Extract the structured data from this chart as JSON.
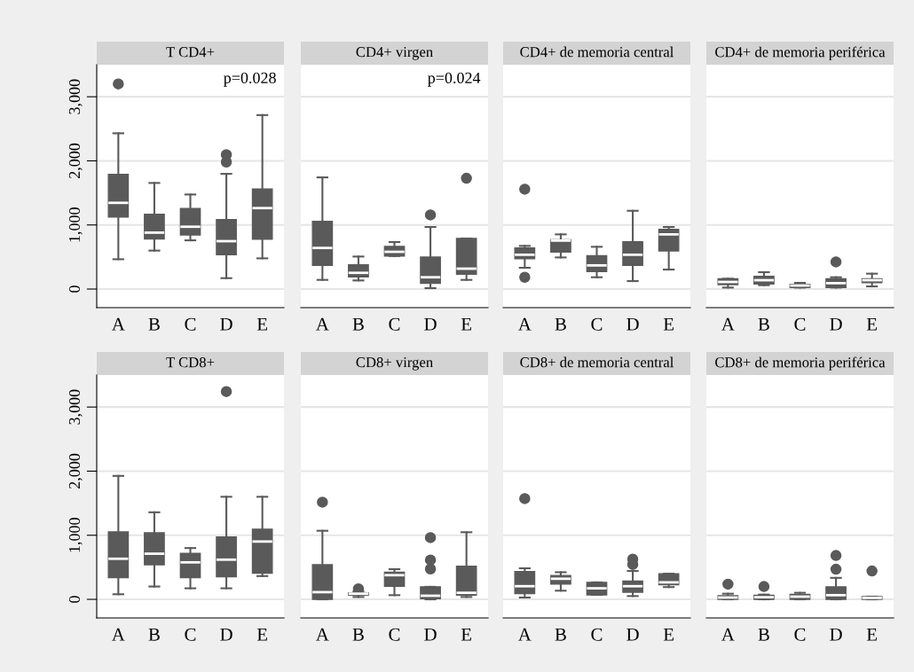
{
  "chart_data": [
    {
      "type": "box",
      "title": "T CD4+",
      "categories": [
        "A",
        "B",
        "C",
        "D",
        "E"
      ],
      "ylim": [
        -290,
        3500
      ],
      "yticks": [
        0,
        {
          "value": 1000,
          "label": "1,000"
        },
        {
          "value": 2000,
          "label": "2,000"
        },
        {
          "value": 3000,
          "label": "3,000"
        }
      ],
      "grid": "y",
      "annotations": [
        "p=0.028"
      ],
      "boxes": [
        {
          "low": 465,
          "q1": 1125,
          "median": 1345,
          "q3": 1790,
          "high": 2430,
          "outliers": [
            3200
          ]
        },
        {
          "low": 600,
          "q1": 780,
          "median": 880,
          "q3": 1165,
          "high": 1655
        },
        {
          "low": 760,
          "q1": 843,
          "median": 972,
          "q3": 1258,
          "high": 1475
        },
        {
          "low": 170,
          "q1": 535,
          "median": 747,
          "q3": 1083,
          "high": 1797,
          "outliers": [
            1982,
            2097
          ]
        },
        {
          "low": 479,
          "q1": 779,
          "median": 1263,
          "q3": 1562,
          "high": 2714
        }
      ]
    },
    {
      "type": "box",
      "title": "CD4+ virgen",
      "categories": [
        "A",
        "B",
        "C",
        "D",
        "E"
      ],
      "ylim": [
        -290,
        3500
      ],
      "yticks": [
        {
          "value": 0,
          "label": null
        },
        {
          "value": 1000,
          "label": null
        },
        {
          "value": 2000,
          "label": null
        },
        {
          "value": 3000,
          "label": null
        }
      ],
      "grid": "y",
      "tick_labels": "x",
      "annotations": [
        "p=0.024"
      ],
      "boxes": [
        {
          "low": 143,
          "q1": 369,
          "median": 641,
          "q3": 1055,
          "high": 1742
        },
        {
          "low": 134,
          "q1": 189,
          "median": 253,
          "q3": 378,
          "high": 507
        },
        {
          "low": 516,
          "q1": 516,
          "median": 581,
          "q3": 664,
          "high": 733
        },
        {
          "low": 14,
          "q1": 88,
          "median": 184,
          "q3": 498,
          "high": 968,
          "outliers": [
            1157
          ]
        },
        {
          "low": 143,
          "q1": 230,
          "median": 318,
          "q3": 788,
          "high": 788,
          "outliers": [
            1728
          ]
        }
      ]
    },
    {
      "type": "box",
      "title": "CD4+ de memoria central",
      "categories": [
        "A",
        "B",
        "C",
        "D",
        "E"
      ],
      "ylim": [
        -290,
        3500
      ],
      "yticks": [
        {
          "value": 0,
          "label": null
        },
        {
          "value": 1000,
          "label": null
        },
        {
          "value": 2000,
          "label": null
        },
        {
          "value": 3000,
          "label": null
        }
      ],
      "grid": "y",
      "tick_labels": "x",
      "boxes": [
        {
          "low": 332,
          "q1": 475,
          "median": 535,
          "q3": 641,
          "high": 673,
          "outliers": [
            184,
            1558
          ]
        },
        {
          "low": 493,
          "q1": 576,
          "median": 756,
          "q3": 770,
          "high": 853
        },
        {
          "low": 184,
          "q1": 272,
          "median": 369,
          "q3": 521,
          "high": 659
        },
        {
          "low": 124,
          "q1": 369,
          "median": 535,
          "q3": 737,
          "high": 1221
        },
        {
          "low": 304,
          "q1": 594,
          "median": 853,
          "q3": 931,
          "high": 968
        }
      ]
    },
    {
      "type": "box",
      "title": "CD4+ de memoria periférica",
      "categories": [
        "A",
        "B",
        "C",
        "D",
        "E"
      ],
      "ylim": [
        -290,
        3500
      ],
      "yticks": [
        {
          "value": 0,
          "label": null
        },
        {
          "value": 1000,
          "label": null
        },
        {
          "value": 2000,
          "label": null
        },
        {
          "value": 3000,
          "label": null
        }
      ],
      "grid": "y",
      "tick_labels": "x",
      "boxes": [
        {
          "low": 23,
          "q1": 69,
          "median": 111,
          "q3": 161,
          "high": 161
        },
        {
          "low": 60,
          "q1": 78,
          "median": 138,
          "q3": 198,
          "high": 263
        },
        {
          "low": 23,
          "q1": 23,
          "median": 55,
          "q3": 74,
          "high": 97
        },
        {
          "low": 23,
          "q1": 23,
          "median": 92,
          "q3": 161,
          "high": 184,
          "outliers": [
            424
          ]
        },
        {
          "low": 41,
          "q1": 101,
          "median": 138,
          "q3": 161,
          "high": 240
        }
      ]
    },
    {
      "type": "box",
      "title": "T CD8+",
      "categories": [
        "A",
        "B",
        "C",
        "D",
        "E"
      ],
      "ylim": [
        -290,
        3500
      ],
      "yticks": [
        0,
        {
          "value": 1000,
          "label": "1,000"
        },
        {
          "value": 2000,
          "label": "2,000"
        },
        {
          "value": 3000,
          "label": "3,000"
        }
      ],
      "grid": "y",
      "boxes": [
        {
          "low": 79,
          "q1": 340,
          "median": 633,
          "q3": 1051,
          "high": 1926
        },
        {
          "low": 200,
          "q1": 540,
          "median": 712,
          "q3": 1037,
          "high": 1358
        },
        {
          "low": 172,
          "q1": 340,
          "median": 577,
          "q3": 716,
          "high": 800
        },
        {
          "low": 172,
          "q1": 353,
          "median": 619,
          "q3": 972,
          "high": 1600,
          "outliers": [
            3242
          ]
        },
        {
          "low": 363,
          "q1": 409,
          "median": 902,
          "q3": 1093,
          "high": 1600
        }
      ]
    },
    {
      "type": "box",
      "title": "CD8+ virgen",
      "categories": [
        "A",
        "B",
        "C",
        "D",
        "E"
      ],
      "ylim": [
        -290,
        3500
      ],
      "yticks": [
        {
          "value": 0,
          "label": null
        },
        {
          "value": 1000,
          "label": null
        },
        {
          "value": 2000,
          "label": null
        },
        {
          "value": 3000,
          "label": null
        }
      ],
      "grid": "y",
      "tick_labels": "x",
      "boxes": [
        {
          "low": 0,
          "q1": 0,
          "median": 112,
          "q3": 540,
          "high": 1070,
          "outliers": [
            1516
          ]
        },
        {
          "low": 37,
          "q1": 65,
          "median": 88,
          "q3": 102,
          "high": 126,
          "outliers": [
            163
          ]
        },
        {
          "low": 65,
          "q1": 205,
          "median": 377,
          "q3": 423,
          "high": 470
        },
        {
          "low": 0,
          "q1": 9,
          "median": 56,
          "q3": 195,
          "high": 195,
          "outliers": [
            474,
            614,
            963
          ]
        },
        {
          "low": 37,
          "q1": 65,
          "median": 102,
          "q3": 516,
          "high": 1047
        }
      ]
    },
    {
      "type": "box",
      "title": "CD8+ de memoria central",
      "categories": [
        "A",
        "B",
        "C",
        "D",
        "E"
      ],
      "ylim": [
        -290,
        3500
      ],
      "yticks": [
        {
          "value": 0,
          "label": null
        },
        {
          "value": 1000,
          "label": null
        },
        {
          "value": 2000,
          "label": null
        },
        {
          "value": 3000,
          "label": null
        }
      ],
      "grid": "y",
      "tick_labels": "x",
      "boxes": [
        {
          "low": 28,
          "q1": 88,
          "median": 205,
          "q3": 433,
          "high": 484,
          "outliers": [
            1572
          ]
        },
        {
          "low": 135,
          "q1": 237,
          "median": 321,
          "q3": 372,
          "high": 423
        },
        {
          "low": 70,
          "q1": 70,
          "median": 172,
          "q3": 265,
          "high": 265
        },
        {
          "low": 51,
          "q1": 112,
          "median": 205,
          "q3": 284,
          "high": 442,
          "outliers": [
            544,
            628
          ]
        },
        {
          "low": 191,
          "q1": 228,
          "median": 265,
          "q3": 400,
          "high": 400
        }
      ]
    },
    {
      "type": "box",
      "title": "CD8+ de memoria periférica",
      "categories": [
        "A",
        "B",
        "C",
        "D",
        "E"
      ],
      "ylim": [
        -290,
        3500
      ],
      "yticks": [
        {
          "value": 0,
          "label": null
        },
        {
          "value": 1000,
          "label": null
        },
        {
          "value": 2000,
          "label": null
        },
        {
          "value": 3000,
          "label": null
        }
      ],
      "grid": "y",
      "tick_labels": "x",
      "boxes": [
        {
          "low": 0,
          "q1": 0,
          "median": 28,
          "q3": 56,
          "high": 88,
          "outliers": [
            237
          ]
        },
        {
          "low": 0,
          "q1": 0,
          "median": 33,
          "q3": 65,
          "high": 74,
          "outliers": [
            200
          ]
        },
        {
          "low": 0,
          "q1": 0,
          "median": 42,
          "q3": 79,
          "high": 102
        },
        {
          "low": 0,
          "q1": 0,
          "median": 65,
          "q3": 195,
          "high": 335,
          "outliers": [
            470,
            684
          ]
        },
        {
          "low": 0,
          "q1": 0,
          "median": 23,
          "q3": 42,
          "high": 42,
          "outliers": [
            442
          ]
        }
      ]
    }
  ]
}
